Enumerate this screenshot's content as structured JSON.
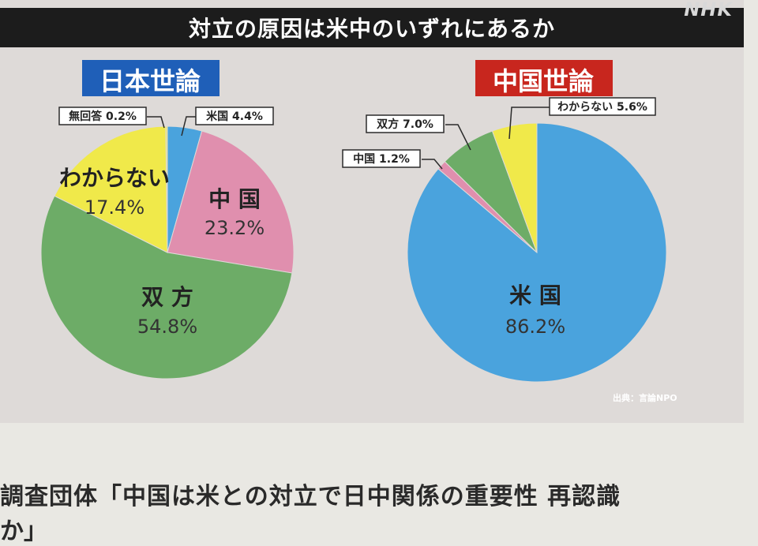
{
  "header": {
    "title": "対立の原因は米中のいずれにあるか",
    "logo": "NHK"
  },
  "chart_data": [
    {
      "type": "pie",
      "title": "日本世論",
      "title_color": "#1f5fb8",
      "slices": [
        {
          "label": "米国",
          "value": 4.4,
          "display": "米国 4.4%",
          "color": "#4aa3dd"
        },
        {
          "label": "中国",
          "value": 23.2,
          "display": "23.2%",
          "color": "#e08fae"
        },
        {
          "label": "双方",
          "value": 54.8,
          "display": "54.8%",
          "color": "#6dac67"
        },
        {
          "label": "わからない",
          "value": 17.4,
          "display": "17.4%",
          "color": "#f0e94a"
        },
        {
          "label": "無回答",
          "value": 0.2,
          "display": "無回答 0.2%",
          "color": "#f0e94a"
        }
      ]
    },
    {
      "type": "pie",
      "title": "中国世論",
      "title_color": "#c8261e",
      "slices": [
        {
          "label": "米国",
          "value": 86.2,
          "display": "86.2%",
          "color": "#4aa3dd"
        },
        {
          "label": "中国",
          "value": 1.2,
          "display": "中国 1.2%",
          "color": "#e08fae"
        },
        {
          "label": "双方",
          "value": 7.0,
          "display": "双方 7.0%",
          "color": "#6dac67"
        },
        {
          "label": "わからない",
          "value": 5.6,
          "display": "わからない 5.6%",
          "color": "#f0e94a"
        }
      ]
    }
  ],
  "source": "出典：言論NPO",
  "caption": {
    "line1": "調査団体「中国は米との対立で日中関係の重要性 再認識",
    "line2": "か」"
  }
}
